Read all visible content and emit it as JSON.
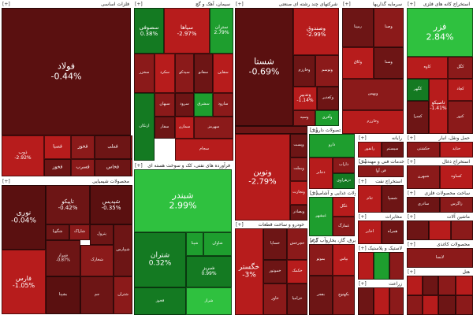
{
  "colors": {
    "deep_red": "#5a1010",
    "red": "#8b1a1a",
    "bright_red": "#b71c1c",
    "dark_red": "#6d1515",
    "green": "#1e9e2e",
    "bright_green": "#2fc13f",
    "dark_green": "#147a22"
  },
  "sectors": [
    {
      "id": "s1",
      "title": "فلزات اساسی",
      "pin": "[+]"
    },
    {
      "id": "s2",
      "title": "سیمان، آهک و گچ",
      "pin": "[+]"
    },
    {
      "id": "s3",
      "title": "شرکتهای چند رشته ای صنعتی",
      "pin": "[+]"
    },
    {
      "id": "s4",
      "title": "محصولات شیمیایی",
      "pin": "[+]"
    },
    {
      "id": "s5",
      "title": "فرآورده های نفتی، کک و سوخت هسته ای",
      "pin": "[+]"
    },
    {
      "id": "s6",
      "title": "بانکها و موسسات اعتباری",
      "pin": "[+]"
    },
    {
      "id": "s7",
      "title": "مواد و محصولات دارویی",
      "pin": "[+]"
    },
    {
      "id": "s8",
      "title": "خودرو و ساخت قطعات",
      "pin": "[+]"
    },
    {
      "id": "s9",
      "title": "عرضه برق، گاز، بخاروآب گرم",
      "pin": "[+]"
    },
    {
      "id": "s10",
      "title": "محصولات غذایی و آشامیدنی",
      "pin": "[+]"
    },
    {
      "id": "s11",
      "title": "مخابرات",
      "pin": "[+]"
    },
    {
      "id": "s12",
      "title": "استخراج کانه های فلزی",
      "pin": "[+]"
    },
    {
      "id": "s13",
      "title": "حمل ونقل، انبار",
      "pin": "[+]"
    },
    {
      "id": "s14",
      "title": "رایانه",
      "pin": "[+]"
    },
    {
      "id": "s15",
      "title": "خدمات فنی و مهندسی",
      "pin": "[+]"
    },
    {
      "id": "s16",
      "title": "استخراج نفت",
      "pin": "[+]"
    },
    {
      "id": "s17",
      "title": "استخراج ذغال",
      "pin": "[+]"
    },
    {
      "id": "s18",
      "title": "ساخت محصولات فلزی",
      "pin": "[+]"
    },
    {
      "id": "s19",
      "title": "ماشین آلات",
      "pin": "[+]"
    },
    {
      "id": "s20",
      "title": "لاستیک و پلاستیک",
      "pin": "[+]"
    },
    {
      "id": "s21",
      "title": "زراعت",
      "pin": "[+]"
    },
    {
      "id": "s22",
      "title": "محصولات کاغذی",
      "pin": "[+]"
    },
    {
      "id": "s23",
      "title": "سرمایه گذاریها",
      "pin": "[+]"
    },
    {
      "id": "s24",
      "title": "هتل",
      "pin": "[+]"
    }
  ],
  "tiles": [
    {
      "name": "فولاد",
      "change": "-0.44%"
    },
    {
      "name": "فملی",
      "change": ""
    },
    {
      "name": "فخوز",
      "change": ""
    },
    {
      "name": "فصبا",
      "change": ""
    },
    {
      "name": "فخاس",
      "change": ""
    },
    {
      "name": "فسرب",
      "change": ""
    },
    {
      "name": "ذوب",
      "change": "-2.92%"
    },
    {
      "name": "فخوز",
      "change": ""
    },
    {
      "name": "فنورد",
      "change": ""
    },
    {
      "name": "فسپا",
      "change": ""
    },
    {
      "name": "فنوال",
      "change": ""
    },
    {
      "name": "فجر",
      "change": ""
    },
    {
      "name": "ونوین",
      "change": ""
    },
    {
      "name": "خوزستان",
      "change": ""
    },
    {
      "name": "سفارس",
      "change": ""
    },
    {
      "name": "سخاش",
      "change": ""
    },
    {
      "name": "سیمان",
      "change": ""
    },
    {
      "name": "سفارود",
      "change": ""
    },
    {
      "name": "ساروم",
      "change": ""
    },
    {
      "name": "سصوفی",
      "change": "0.38%"
    },
    {
      "name": "سپاها",
      "change": "-2.97%"
    },
    {
      "name": "ستران",
      "change": "2.79%"
    },
    {
      "name": "سخزر",
      "change": ""
    },
    {
      "name": "سکرد",
      "change": ""
    },
    {
      "name": "سیدکو",
      "change": ""
    },
    {
      "name": "سفانو",
      "change": ""
    },
    {
      "name": "سقاین",
      "change": ""
    },
    {
      "name": "سبهان",
      "change": ""
    },
    {
      "name": "سرود",
      "change": ""
    },
    {
      "name": "سشرق",
      "change": ""
    },
    {
      "name": "سارود",
      "change": ""
    },
    {
      "name": "سمازن",
      "change": ""
    },
    {
      "name": "سهرمز",
      "change": ""
    },
    {
      "name": "سفار",
      "change": ""
    },
    {
      "name": "سجام",
      "change": ""
    },
    {
      "name": "ارتکان",
      "change": ""
    },
    {
      "name": "شستا",
      "change": "-0.69%"
    },
    {
      "name": "وصندوق",
      "change": "-2.99%"
    },
    {
      "name": "وخارزم",
      "change": ""
    },
    {
      "name": "وتوسم",
      "change": ""
    },
    {
      "name": "وتدبیر",
      "change": "-1.14%"
    },
    {
      "name": "وکغدیر",
      "change": ""
    },
    {
      "name": "وسپه",
      "change": ""
    },
    {
      "name": "وآفری",
      "change": ""
    },
    {
      "name": "رمپنا",
      "change": ""
    },
    {
      "name": "وصنا",
      "change": ""
    },
    {
      "name": "وکاق",
      "change": ""
    },
    {
      "name": "وسنا",
      "change": ""
    },
    {
      "name": "وبهمن",
      "change": ""
    },
    {
      "name": "نوری",
      "change": "-0.04%"
    },
    {
      "name": "تاپیکو",
      "change": "-0.42%"
    },
    {
      "name": "شپدیس",
      "change": "-0.35%"
    },
    {
      "name": "فارس",
      "change": "-1.05%"
    },
    {
      "name": "شگویا",
      "change": ""
    },
    {
      "name": "شاراک",
      "change": ""
    },
    {
      "name": "پترول",
      "change": ""
    },
    {
      "name": "شیراز",
      "change": "-0.87%"
    },
    {
      "name": "شخارک",
      "change": ""
    },
    {
      "name": "بشپنا",
      "change": ""
    },
    {
      "name": "جم",
      "change": ""
    },
    {
      "name": "شیپارس",
      "change": ""
    },
    {
      "name": "شتران",
      "change": ""
    },
    {
      "name": "شبندر",
      "change": "2.99%"
    },
    {
      "name": "شتران",
      "change": "0.32%"
    },
    {
      "name": "شپنا",
      "change": ""
    },
    {
      "name": "شبریز",
      "change": "0.99%"
    },
    {
      "name": "شاوان",
      "change": ""
    },
    {
      "name": "شراز",
      "change": ""
    },
    {
      "name": "ونوین",
      "change": "-2.79%"
    },
    {
      "name": "وپست",
      "change": ""
    },
    {
      "name": "وبملت",
      "change": ""
    },
    {
      "name": "وتجارت",
      "change": ""
    },
    {
      "name": "وبصادر",
      "change": ""
    },
    {
      "name": "وپارس",
      "change": ""
    },
    {
      "name": "وبانک",
      "change": ""
    },
    {
      "name": "وکار",
      "change": ""
    },
    {
      "name": "وسینا",
      "change": ""
    },
    {
      "name": "وخاور",
      "change": ""
    },
    {
      "name": "دارو",
      "change": ""
    },
    {
      "name": "دجابر",
      "change": ""
    },
    {
      "name": "داراب",
      "change": ""
    },
    {
      "name": "دزهراوی",
      "change": ""
    },
    {
      "name": "دتماد",
      "change": ""
    },
    {
      "name": "دفارا",
      "change": ""
    },
    {
      "name": "دالبر",
      "change": ""
    },
    {
      "name": "دکوثر",
      "change": ""
    },
    {
      "name": "خودرو",
      "change": ""
    },
    {
      "name": "خساپا",
      "change": ""
    },
    {
      "name": "خچرخش",
      "change": ""
    },
    {
      "name": "خگستر",
      "change": "-3%"
    },
    {
      "name": "خموتور",
      "change": ""
    },
    {
      "name": "خکمک",
      "change": ""
    },
    {
      "name": "خاور",
      "change": ""
    },
    {
      "name": "خزامیا",
      "change": ""
    },
    {
      "name": "خپارس",
      "change": ""
    },
    {
      "name": "ختراک",
      "change": ""
    },
    {
      "name": "خکاوه",
      "change": ""
    },
    {
      "name": "ختوقا",
      "change": ""
    },
    {
      "name": "خنصیر",
      "change": ""
    },
    {
      "name": "بموتو",
      "change": ""
    },
    {
      "name": "بپاس",
      "change": ""
    },
    {
      "name": "بفجر",
      "change": ""
    },
    {
      "name": "بکهنوج",
      "change": ""
    },
    {
      "name": "غبشهر",
      "change": ""
    },
    {
      "name": "غگل",
      "change": ""
    },
    {
      "name": "غمارگ",
      "change": ""
    },
    {
      "name": "غکورش",
      "change": ""
    },
    {
      "name": "اخابر",
      "change": ""
    },
    {
      "name": "همراه",
      "change": ""
    },
    {
      "name": "فزر",
      "change": "2.84%"
    },
    {
      "name": "کگل",
      "change": ""
    },
    {
      "name": "کچاد",
      "change": ""
    },
    {
      "name": "کنور",
      "change": ""
    },
    {
      "name": "کاوه",
      "change": ""
    },
    {
      "name": "کسرا",
      "change": ""
    },
    {
      "name": "تاصیکو",
      "change": "-1.41%"
    },
    {
      "name": "کگهر",
      "change": ""
    },
    {
      "name": "حکشتی",
      "change": ""
    },
    {
      "name": "حتاید",
      "change": ""
    },
    {
      "name": "رانفور",
      "change": ""
    },
    {
      "name": "سیستم",
      "change": ""
    },
    {
      "name": "فن آوا",
      "change": ""
    },
    {
      "name": "ثنام",
      "change": ""
    },
    {
      "name": "شسپا",
      "change": ""
    },
    {
      "name": "شبهرن",
      "change": ""
    },
    {
      "name": "کساوه",
      "change": ""
    },
    {
      "name": "ساذری",
      "change": ""
    },
    {
      "name": "زاگرس",
      "change": ""
    },
    {
      "name": "لابسا",
      "change": ""
    }
  ]
}
